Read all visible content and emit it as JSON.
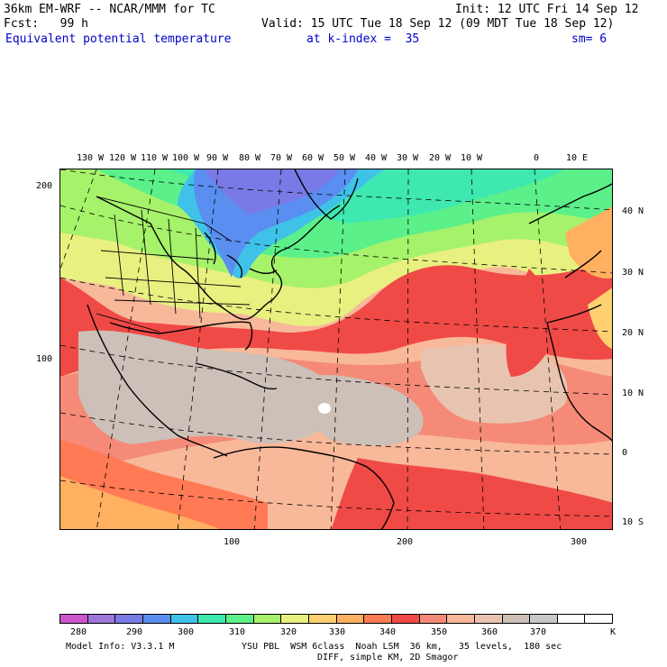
{
  "header": {
    "model_title": "36km EM-WRF -- NCAR/MMM for TC",
    "init": "Init: 12 UTC Fri 14 Sep 12",
    "fcst": "Fcst:   99 h",
    "valid": "Valid: 15 UTC Tue 18 Sep 12 (09 MDT Tue 18 Sep 12)",
    "field_name": "Equivalent potential temperature",
    "overlay": "at k-index =  35",
    "smoothing": "sm= 6"
  },
  "map": {
    "longitude_labels": [
      "130 W",
      "120 W",
      "110 W",
      "100 W",
      "90 W",
      "80 W",
      "70 W",
      "60 W",
      "50 W",
      "40 W",
      "30 W",
      "20 W",
      "10 W",
      "0",
      "10 E"
    ],
    "latitude_labels": [
      "40 N",
      "30 N",
      "20 N",
      "10 N",
      "0",
      "10 S"
    ],
    "grid_y_labels": [
      "200",
      "100"
    ],
    "grid_x_labels": [
      "100",
      "200",
      "300"
    ],
    "colors": {
      "c280": "#cc55cc",
      "c285": "#9b78d8",
      "c290": "#7a7ae6",
      "c295": "#5a8ef0",
      "c300": "#3fc2e8",
      "c305": "#3ee8b0",
      "c310": "#5cf08a",
      "c315": "#a6f26a",
      "c320": "#e8f080",
      "c325": "#ffd070",
      "c330": "#ffb060",
      "c335": "#ff7a55",
      "c340": "#f04a46",
      "c345": "#f58a78",
      "c350": "#f8b89a",
      "c355": "#e8c4b0",
      "c360": "#ccc0b8",
      "c365": "#c8c8c8",
      "c370": "#ffffff"
    }
  },
  "colorbar": {
    "labels": [
      "280",
      "290",
      "300",
      "310",
      "320",
      "330",
      "340",
      "350",
      "360",
      "370",
      "K"
    ],
    "swatches": [
      "#cc55cc",
      "#9b78d8",
      "#7a7ae6",
      "#5a8ef0",
      "#3fc2e8",
      "#3ee8b0",
      "#5cf08a",
      "#a6f26a",
      "#e8f080",
      "#ffd070",
      "#ffb060",
      "#ff7a55",
      "#f04a46",
      "#f58a78",
      "#f8b89a",
      "#e8c4b0",
      "#ccc0b8",
      "#c8c8c8",
      "#ffffff",
      "#ffffff"
    ]
  },
  "footer": {
    "model_info": "Model Info: V3.3.1 M",
    "physics": "YSU PBL  WSM 6class  Noah LSM  36 km,   35 levels,  180 sec",
    "diff": "DIFF, simple KM, 2D Smagor"
  }
}
